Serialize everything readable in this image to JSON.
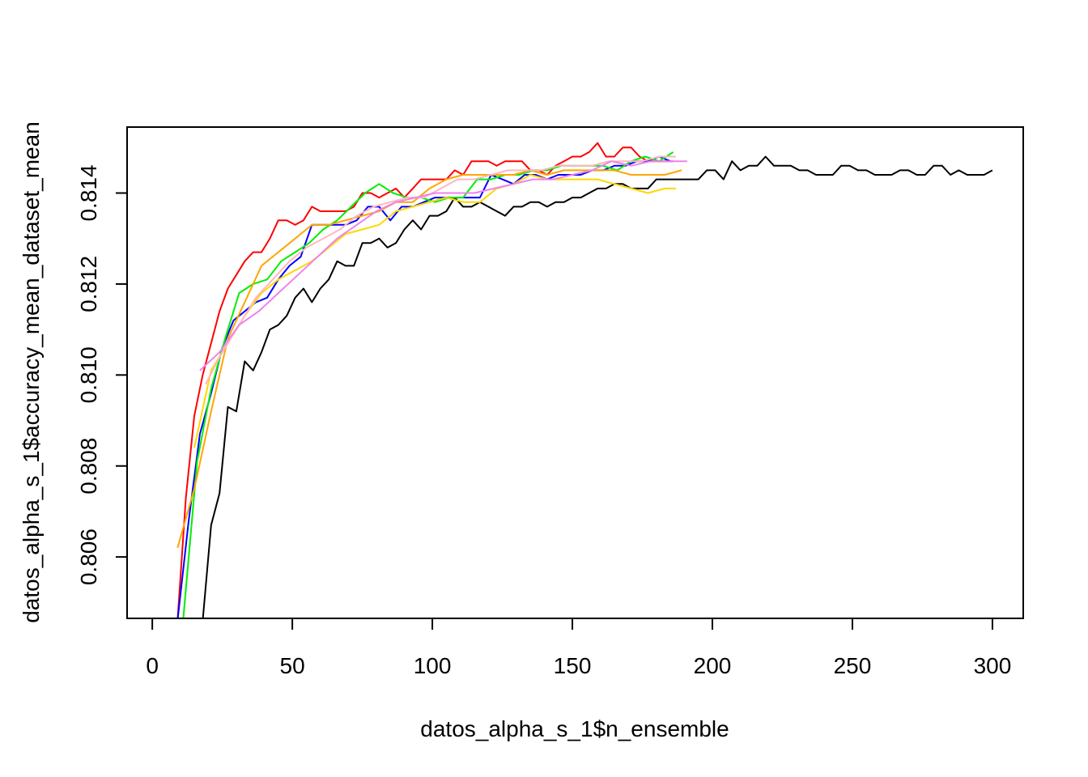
{
  "chart_data": {
    "type": "line",
    "title": "",
    "xlabel": "datos_alpha_s_1$n_ensemble",
    "ylabel": "datos_alpha_s_1$accuracy_mean_dataset_mean",
    "xlim": [
      -9,
      311
    ],
    "ylim": [
      0.80465,
      0.81545
    ],
    "x_ticks": [
      0,
      50,
      100,
      150,
      200,
      250,
      300
    ],
    "y_ticks": [
      0.806,
      0.808,
      0.81,
      0.812,
      0.814
    ],
    "x_tick_labels": [
      "0",
      "50",
      "100",
      "150",
      "200",
      "250",
      "300"
    ],
    "y_tick_labels": [
      "0.806",
      "0.808",
      "0.810",
      "0.812",
      "0.814"
    ],
    "grid": false,
    "legend": "none",
    "series": [
      {
        "color": "#000000",
        "x": [
          18,
          21,
          24,
          27,
          30,
          33,
          36,
          39,
          42,
          45,
          48,
          51,
          54,
          57,
          60,
          63,
          66,
          69,
          72,
          75,
          78,
          81,
          84,
          87,
          90,
          93,
          96,
          99,
          102,
          105,
          108,
          111,
          114,
          117,
          120,
          123,
          126,
          129,
          132,
          135,
          138,
          141,
          144,
          147,
          150,
          153,
          156,
          159,
          162,
          165,
          168,
          171,
          174,
          177,
          180,
          183,
          186,
          189,
          192,
          195,
          198,
          201,
          204,
          207,
          210,
          213,
          216,
          219,
          222,
          225,
          228,
          231,
          234,
          237,
          240,
          243,
          246,
          249,
          252,
          255,
          258,
          261,
          264,
          267,
          270,
          273,
          276,
          279,
          282,
          285,
          288,
          291,
          294,
          297,
          300
        ],
        "y": [
          0.8046,
          0.8067,
          0.8074,
          0.8093,
          0.8092,
          0.8103,
          0.8101,
          0.8105,
          0.811,
          0.8111,
          0.8113,
          0.8117,
          0.8119,
          0.8116,
          0.8119,
          0.8121,
          0.8125,
          0.8124,
          0.8124,
          0.8129,
          0.8129,
          0.813,
          0.8128,
          0.8129,
          0.8132,
          0.8134,
          0.8132,
          0.8135,
          0.8135,
          0.8136,
          0.8139,
          0.8137,
          0.8137,
          0.8138,
          0.8137,
          0.8136,
          0.8135,
          0.8137,
          0.8137,
          0.8138,
          0.8138,
          0.8137,
          0.8138,
          0.8138,
          0.8139,
          0.8139,
          0.814,
          0.8141,
          0.8141,
          0.8142,
          0.8142,
          0.8141,
          0.8141,
          0.8141,
          0.8143,
          0.8143,
          0.8143,
          0.8143,
          0.8143,
          0.8143,
          0.8145,
          0.8145,
          0.8143,
          0.8147,
          0.8145,
          0.8146,
          0.8146,
          0.8148,
          0.8146,
          0.8146,
          0.8146,
          0.8145,
          0.8145,
          0.8144,
          0.8144,
          0.8144,
          0.8146,
          0.8146,
          0.8145,
          0.8145,
          0.8144,
          0.8144,
          0.8144,
          0.8145,
          0.8145,
          0.8144,
          0.8144,
          0.8146,
          0.8146,
          0.8144,
          0.8145,
          0.8144,
          0.8144,
          0.8144,
          0.8145
        ]
      },
      {
        "color": "#ff0000",
        "x": [
          9,
          12,
          15,
          18,
          21,
          24,
          27,
          30,
          33,
          36,
          39,
          42,
          45,
          48,
          51,
          54,
          57,
          60,
          63,
          66,
          69,
          72,
          75,
          78,
          81,
          84,
          87,
          90,
          93,
          96,
          99,
          102,
          105,
          108,
          111,
          114,
          117,
          120,
          123,
          126,
          129,
          132,
          135,
          138,
          141,
          144,
          147,
          150,
          153,
          156,
          159,
          162,
          165,
          168,
          171,
          174,
          177,
          180,
          183,
          186
        ],
        "y": [
          0.8046,
          0.8073,
          0.8091,
          0.81,
          0.8107,
          0.8114,
          0.8119,
          0.8122,
          0.8125,
          0.8127,
          0.8127,
          0.813,
          0.8134,
          0.8134,
          0.8133,
          0.8134,
          0.8137,
          0.8136,
          0.8136,
          0.8136,
          0.8136,
          0.8137,
          0.814,
          0.814,
          0.8139,
          0.814,
          0.8141,
          0.8139,
          0.8141,
          0.8143,
          0.8143,
          0.8143,
          0.8143,
          0.8145,
          0.8144,
          0.8147,
          0.8147,
          0.8147,
          0.8146,
          0.8147,
          0.8147,
          0.8147,
          0.8145,
          0.8145,
          0.8144,
          0.8146,
          0.8147,
          0.8148,
          0.8148,
          0.8149,
          0.8151,
          0.8148,
          0.8148,
          0.815,
          0.815,
          0.8148,
          0.8147,
          0.8147,
          0.8147,
          0.8147
        ]
      },
      {
        "color": "#0000ff",
        "x": [
          9,
          13,
          17,
          21,
          25,
          29,
          33,
          37,
          41,
          45,
          49,
          53,
          57,
          61,
          65,
          69,
          73,
          77,
          81,
          85,
          89,
          93,
          97,
          101,
          105,
          109,
          113,
          117,
          121,
          125,
          129,
          133,
          137,
          141,
          145,
          149,
          153,
          157,
          161,
          165,
          169,
          173,
          177,
          181,
          185
        ],
        "y": [
          0.8046,
          0.8068,
          0.8087,
          0.8096,
          0.8106,
          0.8112,
          0.8114,
          0.8116,
          0.8117,
          0.8121,
          0.8124,
          0.8126,
          0.8133,
          0.8133,
          0.8133,
          0.8133,
          0.8134,
          0.8137,
          0.8137,
          0.8134,
          0.8137,
          0.8137,
          0.8138,
          0.8139,
          0.8139,
          0.8139,
          0.8139,
          0.8139,
          0.8144,
          0.8143,
          0.8142,
          0.8144,
          0.8144,
          0.8143,
          0.8144,
          0.8144,
          0.8144,
          0.8145,
          0.8145,
          0.8146,
          0.8146,
          0.8147,
          0.8147,
          0.8148,
          0.8147
        ]
      },
      {
        "color": "#00ee00",
        "x": [
          11,
          16,
          21,
          26,
          31,
          36,
          41,
          46,
          51,
          56,
          61,
          66,
          71,
          76,
          81,
          86,
          91,
          96,
          101,
          106,
          111,
          116,
          121,
          126,
          131,
          136,
          141,
          146,
          151,
          156,
          161,
          166,
          171,
          176,
          181,
          186
        ],
        "y": [
          0.8046,
          0.8081,
          0.8097,
          0.8108,
          0.8118,
          0.812,
          0.8121,
          0.8125,
          0.8127,
          0.8129,
          0.8132,
          0.8134,
          0.8137,
          0.814,
          0.8142,
          0.814,
          0.8139,
          0.8139,
          0.8138,
          0.8139,
          0.8139,
          0.8143,
          0.8143,
          0.8144,
          0.8144,
          0.8145,
          0.8145,
          0.8146,
          0.8146,
          0.8146,
          0.8146,
          0.8145,
          0.8147,
          0.8148,
          0.8147,
          0.8149
        ]
      },
      {
        "color": "#ffa500",
        "x": [
          9,
          15,
          21,
          27,
          33,
          39,
          45,
          51,
          57,
          63,
          69,
          75,
          81,
          87,
          93,
          99,
          105,
          111,
          117,
          123,
          129,
          135,
          141,
          147,
          153,
          159,
          165,
          171,
          177,
          183,
          189
        ],
        "y": [
          0.8062,
          0.8075,
          0.8092,
          0.8108,
          0.8116,
          0.8124,
          0.8127,
          0.813,
          0.8133,
          0.8133,
          0.8134,
          0.8135,
          0.8136,
          0.8138,
          0.8138,
          0.8141,
          0.8143,
          0.8144,
          0.8144,
          0.8144,
          0.8144,
          0.8145,
          0.8144,
          0.8145,
          0.8145,
          0.8145,
          0.8145,
          0.8144,
          0.8144,
          0.8144,
          0.8145
        ]
      },
      {
        "color": "#ffd700",
        "x": [
          15,
          21,
          27,
          33,
          39,
          45,
          51,
          57,
          63,
          69,
          75,
          81,
          87,
          93,
          99,
          105,
          111,
          117,
          123,
          129,
          135,
          141,
          147,
          153,
          159,
          165,
          171,
          177,
          183,
          187
        ],
        "y": [
          0.8084,
          0.8101,
          0.8107,
          0.8113,
          0.8118,
          0.8121,
          0.8123,
          0.8125,
          0.8128,
          0.8131,
          0.8132,
          0.8133,
          0.8136,
          0.8137,
          0.8138,
          0.8139,
          0.8138,
          0.8138,
          0.8141,
          0.8142,
          0.8144,
          0.8143,
          0.8143,
          0.8143,
          0.8143,
          0.8142,
          0.8141,
          0.814,
          0.8141,
          0.8141
        ]
      },
      {
        "color": "#ffb6c1",
        "x": [
          19,
          25,
          31,
          37,
          43,
          49,
          55,
          61,
          67,
          73,
          79,
          85,
          91,
          97,
          103,
          109,
          115,
          121,
          127,
          133,
          139,
          145,
          151,
          157,
          163,
          169,
          175,
          181,
          187
        ],
        "y": [
          0.8098,
          0.8105,
          0.8111,
          0.8117,
          0.8121,
          0.8125,
          0.8128,
          0.813,
          0.8132,
          0.8135,
          0.8137,
          0.8138,
          0.8139,
          0.8139,
          0.8141,
          0.8143,
          0.8143,
          0.8144,
          0.8145,
          0.8145,
          0.8145,
          0.8146,
          0.8146,
          0.8146,
          0.8147,
          0.8147,
          0.8147,
          0.8148,
          0.8148
        ]
      },
      {
        "color": "#ee82ee",
        "x": [
          17,
          24,
          31,
          38,
          45,
          52,
          59,
          66,
          73,
          80,
          87,
          94,
          101,
          108,
          115,
          122,
          129,
          136,
          143,
          150,
          157,
          164,
          171,
          178,
          185,
          191
        ],
        "y": [
          0.8101,
          0.8105,
          0.8111,
          0.8114,
          0.8118,
          0.8122,
          0.8126,
          0.813,
          0.8133,
          0.8136,
          0.8138,
          0.8139,
          0.814,
          0.814,
          0.814,
          0.8141,
          0.8142,
          0.8143,
          0.8143,
          0.8144,
          0.8145,
          0.8147,
          0.8146,
          0.8147,
          0.8147,
          0.8147
        ]
      }
    ]
  }
}
